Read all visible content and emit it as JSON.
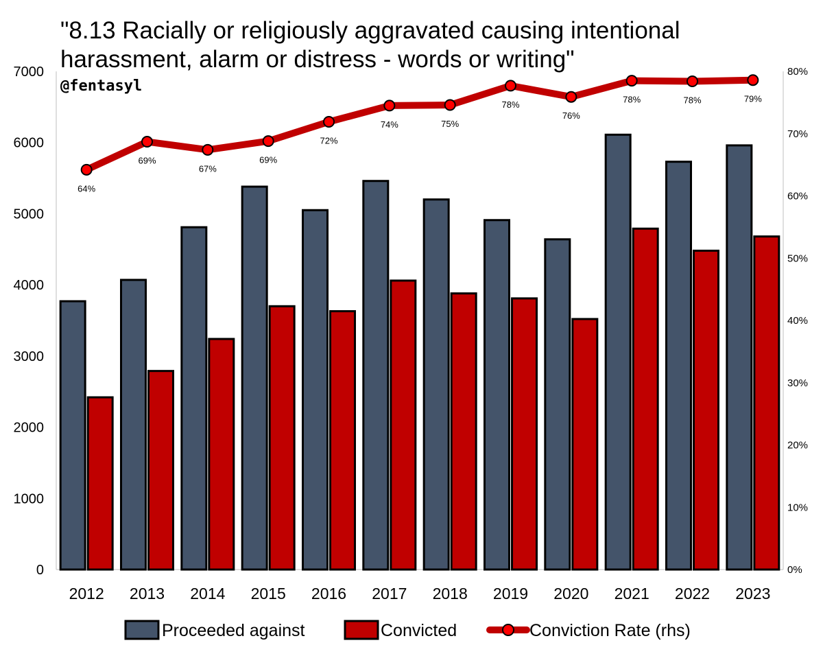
{
  "chart_data": {
    "type": "bar",
    "title_lines": [
      "\"8.13 Racially or religiously aggravated causing intentional",
      "harassment, alarm or distress - words or writing\""
    ],
    "subtitle": "@fentasyl",
    "categories": [
      "2012",
      "2013",
      "2014",
      "2015",
      "2016",
      "2017",
      "2018",
      "2019",
      "2020",
      "2021",
      "2022",
      "2023"
    ],
    "series": [
      {
        "name": "Proceeded against",
        "kind": "bar",
        "color": "#44546a",
        "values": [
          3770,
          4070,
          4810,
          5380,
          5050,
          5460,
          5200,
          4910,
          4640,
          6110,
          5730,
          5960
        ]
      },
      {
        "name": "Convicted",
        "kind": "bar",
        "color": "#c00000",
        "values": [
          2420,
          2790,
          3240,
          3700,
          3630,
          4060,
          3880,
          3810,
          3520,
          4790,
          4480,
          4680
        ]
      },
      {
        "name": "Conviction Rate (rhs)",
        "kind": "line",
        "axis": "right",
        "color": "#c00000",
        "values": [
          64.2,
          68.7,
          67.4,
          68.8,
          71.9,
          74.5,
          74.6,
          77.7,
          75.9,
          78.5,
          78.4,
          78.6
        ],
        "labels": [
          "64%",
          "69%",
          "67%",
          "69%",
          "72%",
          "74%",
          "75%",
          "78%",
          "76%",
          "78%",
          "78%",
          "79%"
        ]
      }
    ],
    "y_left": {
      "min": 0,
      "max": 7000,
      "ticks": [
        "0",
        "1000",
        "2000",
        "3000",
        "4000",
        "5000",
        "6000",
        "7000"
      ]
    },
    "y_right": {
      "min": 0,
      "max": 80,
      "ticks": [
        "0%",
        "10%",
        "20%",
        "30%",
        "40%",
        "50%",
        "60%",
        "70%",
        "80%"
      ]
    },
    "grid": false,
    "legend_position": "bottom"
  }
}
